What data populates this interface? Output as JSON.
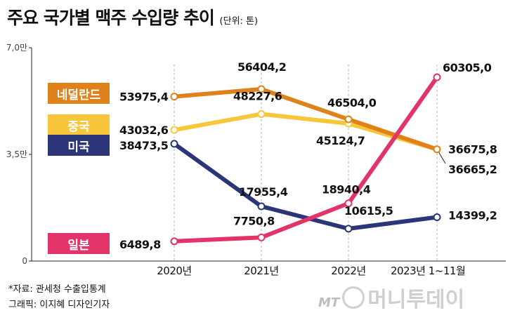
{
  "title": "주요 국가별 맥주 수입량 추이",
  "unit": "(단위: 톤)",
  "chart_data": {
    "type": "line",
    "categories": [
      "2020년",
      "2021년",
      "2022년",
      "2023년 1~11월"
    ],
    "ylim": [
      0,
      70000
    ],
    "yticks": [
      {
        "value": 0,
        "label": "0"
      },
      {
        "value": 35000,
        "label": "3,5만"
      },
      {
        "value": 70000,
        "label": "7,0만"
      }
    ],
    "grid": "vertical dashed",
    "series": [
      {
        "name": "네덜란드",
        "color": "#e0821c",
        "values": [
          53975.4,
          56404.2,
          46504.0,
          36675.8
        ],
        "labels": [
          "53975,4",
          "56404,2",
          "46504,0",
          "36675,8"
        ]
      },
      {
        "name": "중국",
        "color": "#f8c63a",
        "values": [
          43032.6,
          48227.6,
          45124.7,
          36665.2
        ],
        "labels": [
          "43032,6",
          "48227,6",
          "45124,7",
          "36665,2"
        ]
      },
      {
        "name": "미국",
        "color": "#2b3577",
        "values": [
          38473.5,
          17955.4,
          10615.5,
          14399.2
        ],
        "labels": [
          "38473,5",
          "17955,4",
          "10615,5",
          "14399,2"
        ]
      },
      {
        "name": "일본",
        "color": "#e23469",
        "values": [
          6489.8,
          7750.8,
          18940.4,
          60305.0
        ],
        "labels": [
          "6489,8",
          "7750,8",
          "18940,4",
          "60305,0"
        ]
      }
    ]
  },
  "source": "*자료: 관세청 수출입통계",
  "credit": "그래픽: 이지혜 디자인기자",
  "brand": {
    "prefix": "MT",
    "name": "머니투데이"
  }
}
